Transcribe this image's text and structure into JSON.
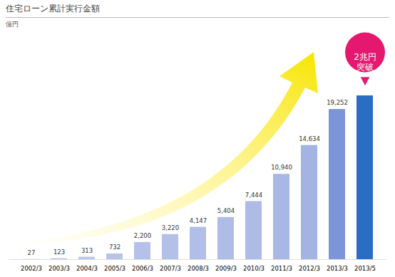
{
  "chart_data": {
    "type": "bar",
    "title": "住宅ローン累計実行金額",
    "y_label": "億円",
    "categories": [
      "2002/3",
      "2003/3",
      "2004/3",
      "2005/3",
      "2006/3",
      "2007/3",
      "2008/3",
      "2009/3",
      "2010/3",
      "2011/3",
      "2012/3",
      "2013/3",
      "2013/5"
    ],
    "values": [
      27,
      123,
      313,
      732,
      2200,
      3220,
      4147,
      5404,
      7444,
      10940,
      14634,
      19252,
      21000
    ],
    "value_labels": [
      "27",
      "123",
      "313",
      "732",
      "2,200",
      "3,220",
      "4,147",
      "5,404",
      "7,444",
      "10,940",
      "14,634",
      "19,252",
      null
    ],
    "colors": [
      "#b9c5ea",
      "#b9c5ea",
      "#b9c5ea",
      "#b7c3e9",
      "#b5c1e8",
      "#b3c0e8",
      "#b1bee7",
      "#afbce6",
      "#adbbe6",
      "#a9b7e4",
      "#a3b3e2",
      "#7b96d6",
      "#2b6cc4"
    ],
    "data_labels": true,
    "tick_labels": "x",
    "ylim": [
      0,
      22000
    ],
    "annotations": [
      {
        "text": "2兆円\n突破",
        "x": "2013/5",
        "color": "#e5186f"
      }
    ]
  }
}
